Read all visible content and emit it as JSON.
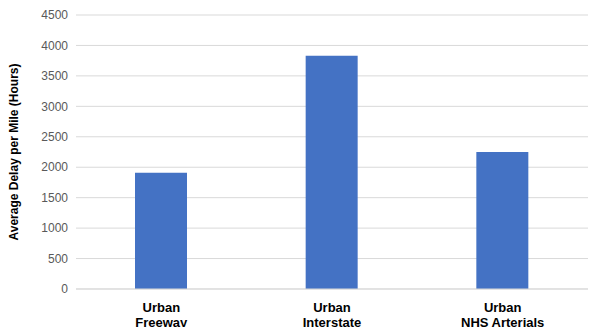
{
  "chart_data": {
    "type": "bar",
    "y_label": "Average Delay per Mile (Hours)",
    "categories": [
      "Urban Freeway",
      "Urban Interstate",
      "Urban NHS Arterials"
    ],
    "values": [
      1910,
      3830,
      2250
    ],
    "color": "#4472c4",
    "ylim": [
      0,
      4500
    ],
    "yticks": [
      0,
      500,
      1000,
      1500,
      2000,
      2500,
      3000,
      3500,
      4000,
      4500
    ],
    "grid": true
  }
}
